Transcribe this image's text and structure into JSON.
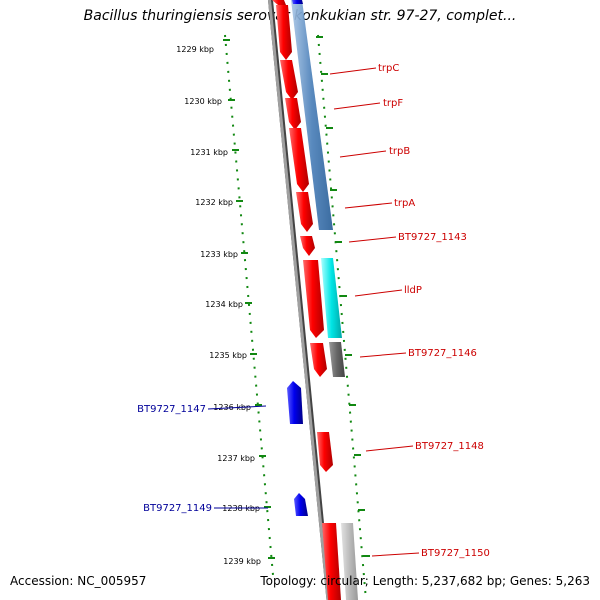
{
  "header": {
    "title": "Bacillus thuringiensis serovar konkukian str. 97-27, complet..."
  },
  "footer": {
    "accession": "Accession: NC_005957",
    "stats": "Topology: circular; Length: 5,237,682 bp; Genes: 5,263"
  },
  "colors": {
    "forward_gene": "#ff0000",
    "reverse_gene": "#0000ee",
    "forward_label": "#cc0000",
    "reverse_label": "#000099",
    "tick_marks": "#118811",
    "backbone": "#888888",
    "operon": "#4a7fb8",
    "lldp": "#00e5e5",
    "gray_gene": "#666666",
    "lightgray_gene": "#bbbbbb"
  },
  "ticks": [
    "1229 kbp",
    "1230 kbp",
    "1231 kbp",
    "1232 kbp",
    "1233 kbp",
    "1234 kbp",
    "1235 kbp",
    "1236 kbp",
    "1237 kbp",
    "1238 kbp",
    "1239 kbp"
  ],
  "genes_right": [
    "trpC",
    "trpF",
    "trpB",
    "trpA",
    "BT9727_1143",
    "lldP",
    "BT9727_1146",
    "BT9727_1148",
    "BT9727_1150"
  ],
  "genes_left": [
    "BT9727_1147",
    "BT9727_1149"
  ]
}
